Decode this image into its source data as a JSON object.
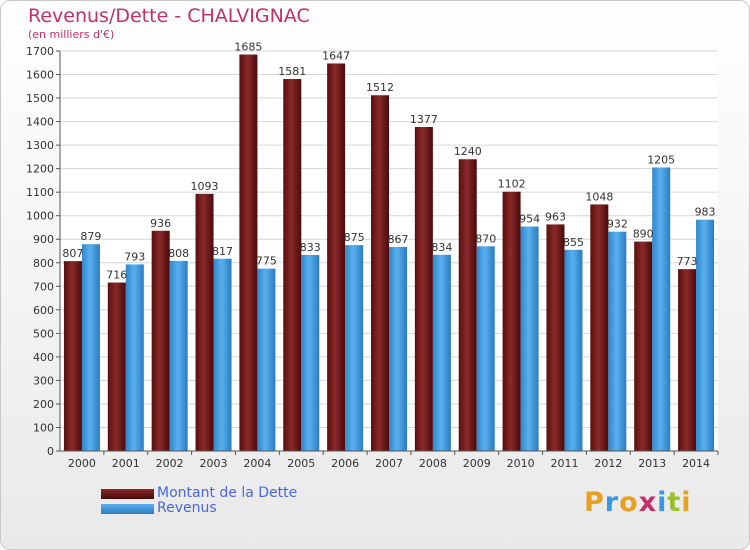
{
  "header": {
    "title": "Revenus/Dette - CHALVIGNAC",
    "subtitle": "(en milliers d'€)"
  },
  "legend": {
    "items": [
      {
        "label": "Montant de la Dette",
        "color": "#6b1414"
      },
      {
        "label": "Revenus",
        "color": "#3a98e0"
      }
    ]
  },
  "brand": {
    "letters": [
      "P",
      "r",
      "o",
      "x",
      "i",
      "t",
      "i"
    ],
    "colors": [
      "#e8a020",
      "#3a98e0",
      "#e8a020",
      "#c0306a",
      "#3a98e0",
      "#9ac030",
      "#e8a020"
    ]
  },
  "chart_data": {
    "type": "bar",
    "title": "Revenus/Dette - CHALVIGNAC",
    "subtitle": "(en milliers d'€)",
    "categories": [
      "2000",
      "2001",
      "2002",
      "2003",
      "2004",
      "2005",
      "2006",
      "2007",
      "2008",
      "2009",
      "2010",
      "2011",
      "2012",
      "2013",
      "2014"
    ],
    "series": [
      {
        "name": "Montant de la Dette",
        "color": "#7a1b1b",
        "values": [
          807,
          716,
          936,
          1093,
          1685,
          1581,
          1647,
          1512,
          1377,
          1240,
          1102,
          963,
          1048,
          890,
          773
        ]
      },
      {
        "name": "Revenus",
        "color": "#3a98e0",
        "values": [
          879,
          793,
          808,
          817,
          775,
          833,
          875,
          867,
          834,
          870,
          954,
          855,
          932,
          1205,
          983
        ]
      }
    ],
    "ylim": [
      0,
      1700
    ],
    "yticks": [
      0,
      100,
      200,
      300,
      400,
      500,
      600,
      700,
      800,
      900,
      1000,
      1100,
      1200,
      1300,
      1400,
      1500,
      1600,
      1700
    ],
    "grid": true,
    "xlabel": "",
    "ylabel": ""
  }
}
